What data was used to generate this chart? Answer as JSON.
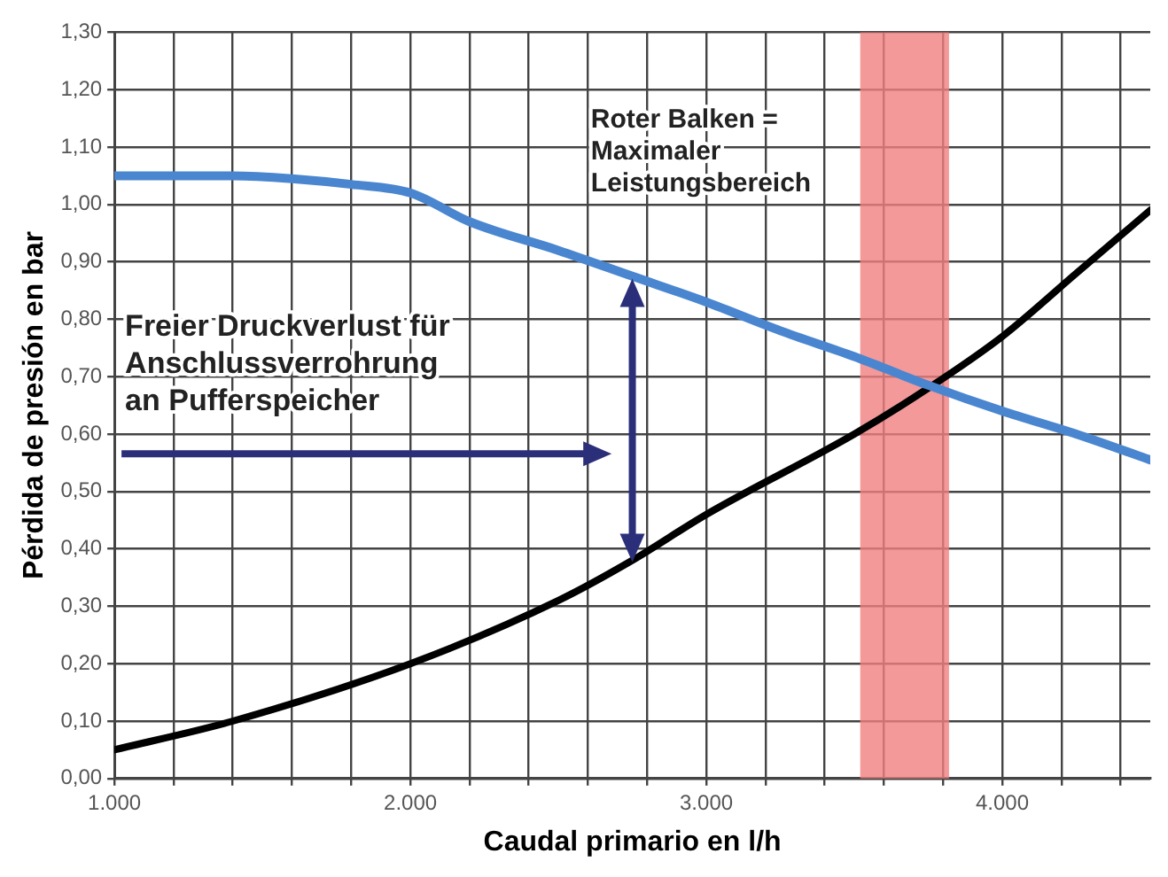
{
  "chart_data": {
    "type": "line",
    "xlabel": "Caudal primario en l/h",
    "ylabel": "Pérdida de presión en bar",
    "xlim": [
      1000,
      4500
    ],
    "xticks": [
      {
        "value": 1000,
        "label": "1.000"
      },
      {
        "value": 1200,
        "label": null
      },
      {
        "value": 1400,
        "label": null
      },
      {
        "value": 1600,
        "label": null
      },
      {
        "value": 1800,
        "label": null
      },
      {
        "value": 2000,
        "label": "2.000"
      },
      {
        "value": 2200,
        "label": null
      },
      {
        "value": 2400,
        "label": null
      },
      {
        "value": 2600,
        "label": null
      },
      {
        "value": 2800,
        "label": null
      },
      {
        "value": 3000,
        "label": "3.000"
      },
      {
        "value": 3200,
        "label": null
      },
      {
        "value": 3400,
        "label": null
      },
      {
        "value": 3600,
        "label": null
      },
      {
        "value": 3800,
        "label": null
      },
      {
        "value": 4000,
        "label": "4.000"
      },
      {
        "value": 4200,
        "label": null
      },
      {
        "value": 4400,
        "label": null
      }
    ],
    "ylim": [
      0,
      1.3
    ],
    "yticks": [
      {
        "value": 0,
        "label": "0,00"
      },
      {
        "value": 0.1,
        "label": "0,10"
      },
      {
        "value": 0.2,
        "label": "0,20"
      },
      {
        "value": 0.3,
        "label": "0,30"
      },
      {
        "value": 0.4,
        "label": "0,40"
      },
      {
        "value": 0.5,
        "label": "0,50"
      },
      {
        "value": 0.6,
        "label": "0,60"
      },
      {
        "value": 0.7,
        "label": "0,70"
      },
      {
        "value": 0.8,
        "label": "0,80"
      },
      {
        "value": 0.9,
        "label": "0,90"
      },
      {
        "value": 1.0,
        "label": "1,00"
      },
      {
        "value": 1.1,
        "label": "1,10"
      },
      {
        "value": 1.2,
        "label": "1,20"
      },
      {
        "value": 1.3,
        "label": "1,30"
      }
    ],
    "grid": true,
    "marker": "none",
    "line_style": "solid",
    "series": [
      {
        "color": "#4a86d0",
        "x": [
          1000,
          1400,
          1600,
          1800,
          2000,
          2200,
          2500,
          2750,
          3000,
          3250,
          3500,
          3750,
          4000,
          4250,
          4500
        ],
        "values": [
          1.05,
          1.05,
          1.045,
          1.035,
          1.02,
          0.97,
          0.92,
          0.875,
          0.83,
          0.78,
          0.735,
          0.685,
          0.64,
          0.6,
          0.555
        ]
      },
      {
        "color": "#000000",
        "x": [
          1000,
          1400,
          2000,
          2500,
          2750,
          3000,
          3500,
          3750,
          4000,
          4250,
          4500
        ],
        "values": [
          0.05,
          0.1,
          0.2,
          0.31,
          0.38,
          0.46,
          0.6,
          0.68,
          0.77,
          0.88,
          0.99
        ]
      }
    ],
    "bands": [
      {
        "axis": "x",
        "from": 3520,
        "to": 3820,
        "color": "#f08080",
        "label": "Roter Balken =\nMaximaler\nLeistungsbereich"
      }
    ],
    "annotations": [
      "Freier Druckverlust für\nAnschlussverrohrung\nan Pufferspeicher"
    ]
  }
}
